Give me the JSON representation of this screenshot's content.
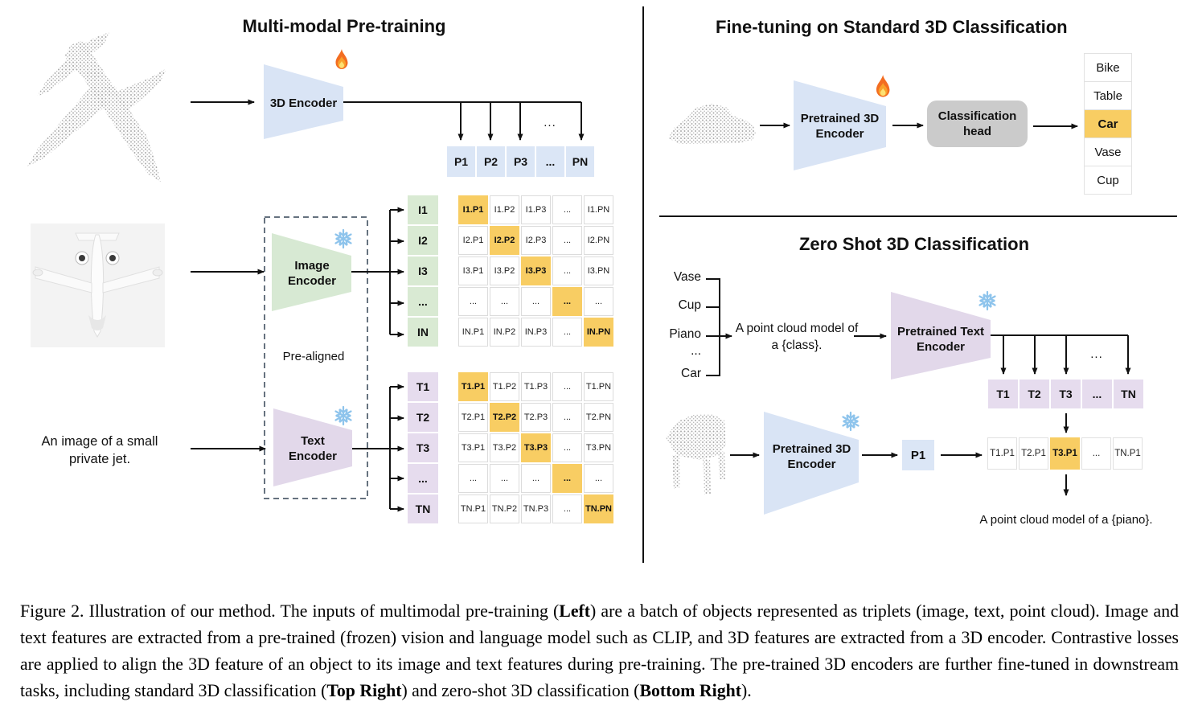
{
  "pretraining": {
    "title": "Multi-modal Pre-training",
    "encoder_3d_label": "3D Encoder",
    "image_encoder_label_line1": "Image",
    "image_encoder_label_line2": "Encoder",
    "text_encoder_label_line1": "Text",
    "text_encoder_label_line2": "Encoder",
    "pre_aligned_label": "Pre-aligned",
    "image_caption": "An image of a small private jet.",
    "p_row": [
      "P1",
      "P2",
      "P3",
      "...",
      "PN"
    ],
    "p_row_ellipsis": "...",
    "image_row_labels": [
      "I1",
      "I2",
      "I3",
      "...",
      "IN"
    ],
    "image_matrix": [
      [
        "I1.P1",
        "I1.P2",
        "I1.P3",
        "...",
        "I1.PN"
      ],
      [
        "I2.P1",
        "I2.P2",
        "I2.P3",
        "...",
        "I2.PN"
      ],
      [
        "I3.P1",
        "I3.P2",
        "I3.P3",
        "...",
        "I3.PN"
      ],
      [
        "...",
        "...",
        "...",
        "...",
        "..."
      ],
      [
        "IN.P1",
        "IN.P2",
        "IN.P3",
        "...",
        "IN.PN"
      ]
    ],
    "text_row_labels": [
      "T1",
      "T2",
      "T3",
      "...",
      "TN"
    ],
    "text_matrix": [
      [
        "T1.P1",
        "T1.P2",
        "T1.P3",
        "...",
        "T1.PN"
      ],
      [
        "T2.P1",
        "T2.P2",
        "T2.P3",
        "...",
        "T2.PN"
      ],
      [
        "T3.P1",
        "T3.P2",
        "T3.P3",
        "...",
        "T3.PN"
      ],
      [
        "...",
        "...",
        "...",
        "...",
        "..."
      ],
      [
        "TN.P1",
        "TN.P2",
        "TN.P3",
        "...",
        "TN.PN"
      ]
    ]
  },
  "finetuning": {
    "title": "Fine-tuning on Standard 3D Classification",
    "encoder_label_line1": "Pretrained 3D",
    "encoder_label_line2": "Encoder",
    "head_label_line1": "Classification",
    "head_label_line2": "head",
    "classes": [
      "Bike",
      "Table",
      "Car",
      "Vase",
      "Cup"
    ],
    "predicted_class": "Car"
  },
  "zeroshot": {
    "title": "Zero Shot 3D Classification",
    "class_prompts": [
      "Vase",
      "Cup",
      "Piano",
      "...",
      "Car"
    ],
    "prompt_line1": "A point cloud model of",
    "prompt_line2": "a {class}.",
    "text_encoder_label_line1": "Pretrained Text",
    "text_encoder_label_line2": "Encoder",
    "encoder_label_line1": "Pretrained 3D",
    "encoder_label_line2": "Encoder",
    "t_row": [
      "T1",
      "T2",
      "T3",
      "...",
      "TN"
    ],
    "t_row_ellipsis": "...",
    "p_feature_label": "P1",
    "similarity_row": [
      "T1.P1",
      "T2.P1",
      "T3.P1",
      "...",
      "TN.P1"
    ],
    "highlighted_similarity": "T3.P1",
    "result_prompt": "A point cloud model of a {piano}."
  },
  "caption": {
    "segments": [
      {
        "text": "Figure 2. Illustration of our method. The inputs of multimodal pre-training (",
        "bold": false
      },
      {
        "text": "Left",
        "bold": true
      },
      {
        "text": ") are a batch of objects represented as triplets (image, text, point cloud). Image and text features are extracted from a pre-trained (frozen) vision and language model such as CLIP, and 3D features are extracted from a 3D encoder. Contrastive losses are applied to align the 3D feature of an object to its image and text features during pre-training. The pre-trained 3D encoders are further fine-tuned in downstream tasks, including standard 3D classification (",
        "bold": false
      },
      {
        "text": "Top Right",
        "bold": true
      },
      {
        "text": ") and zero-shot 3D classification (",
        "bold": false
      },
      {
        "text": "Bottom Right",
        "bold": true
      },
      {
        "text": ").",
        "bold": false
      }
    ]
  },
  "colors": {
    "encoder_blue": "#d9e4f5",
    "encoder_green": "#d7e9d3",
    "encoder_purple": "#e2d8ea",
    "cell_blue": "#dbe6f6",
    "cell_green": "#d9ead3",
    "cell_purple": "#e6dcee",
    "highlight_orange": "#f8cd63",
    "head_gray": "#cbcbcb"
  }
}
